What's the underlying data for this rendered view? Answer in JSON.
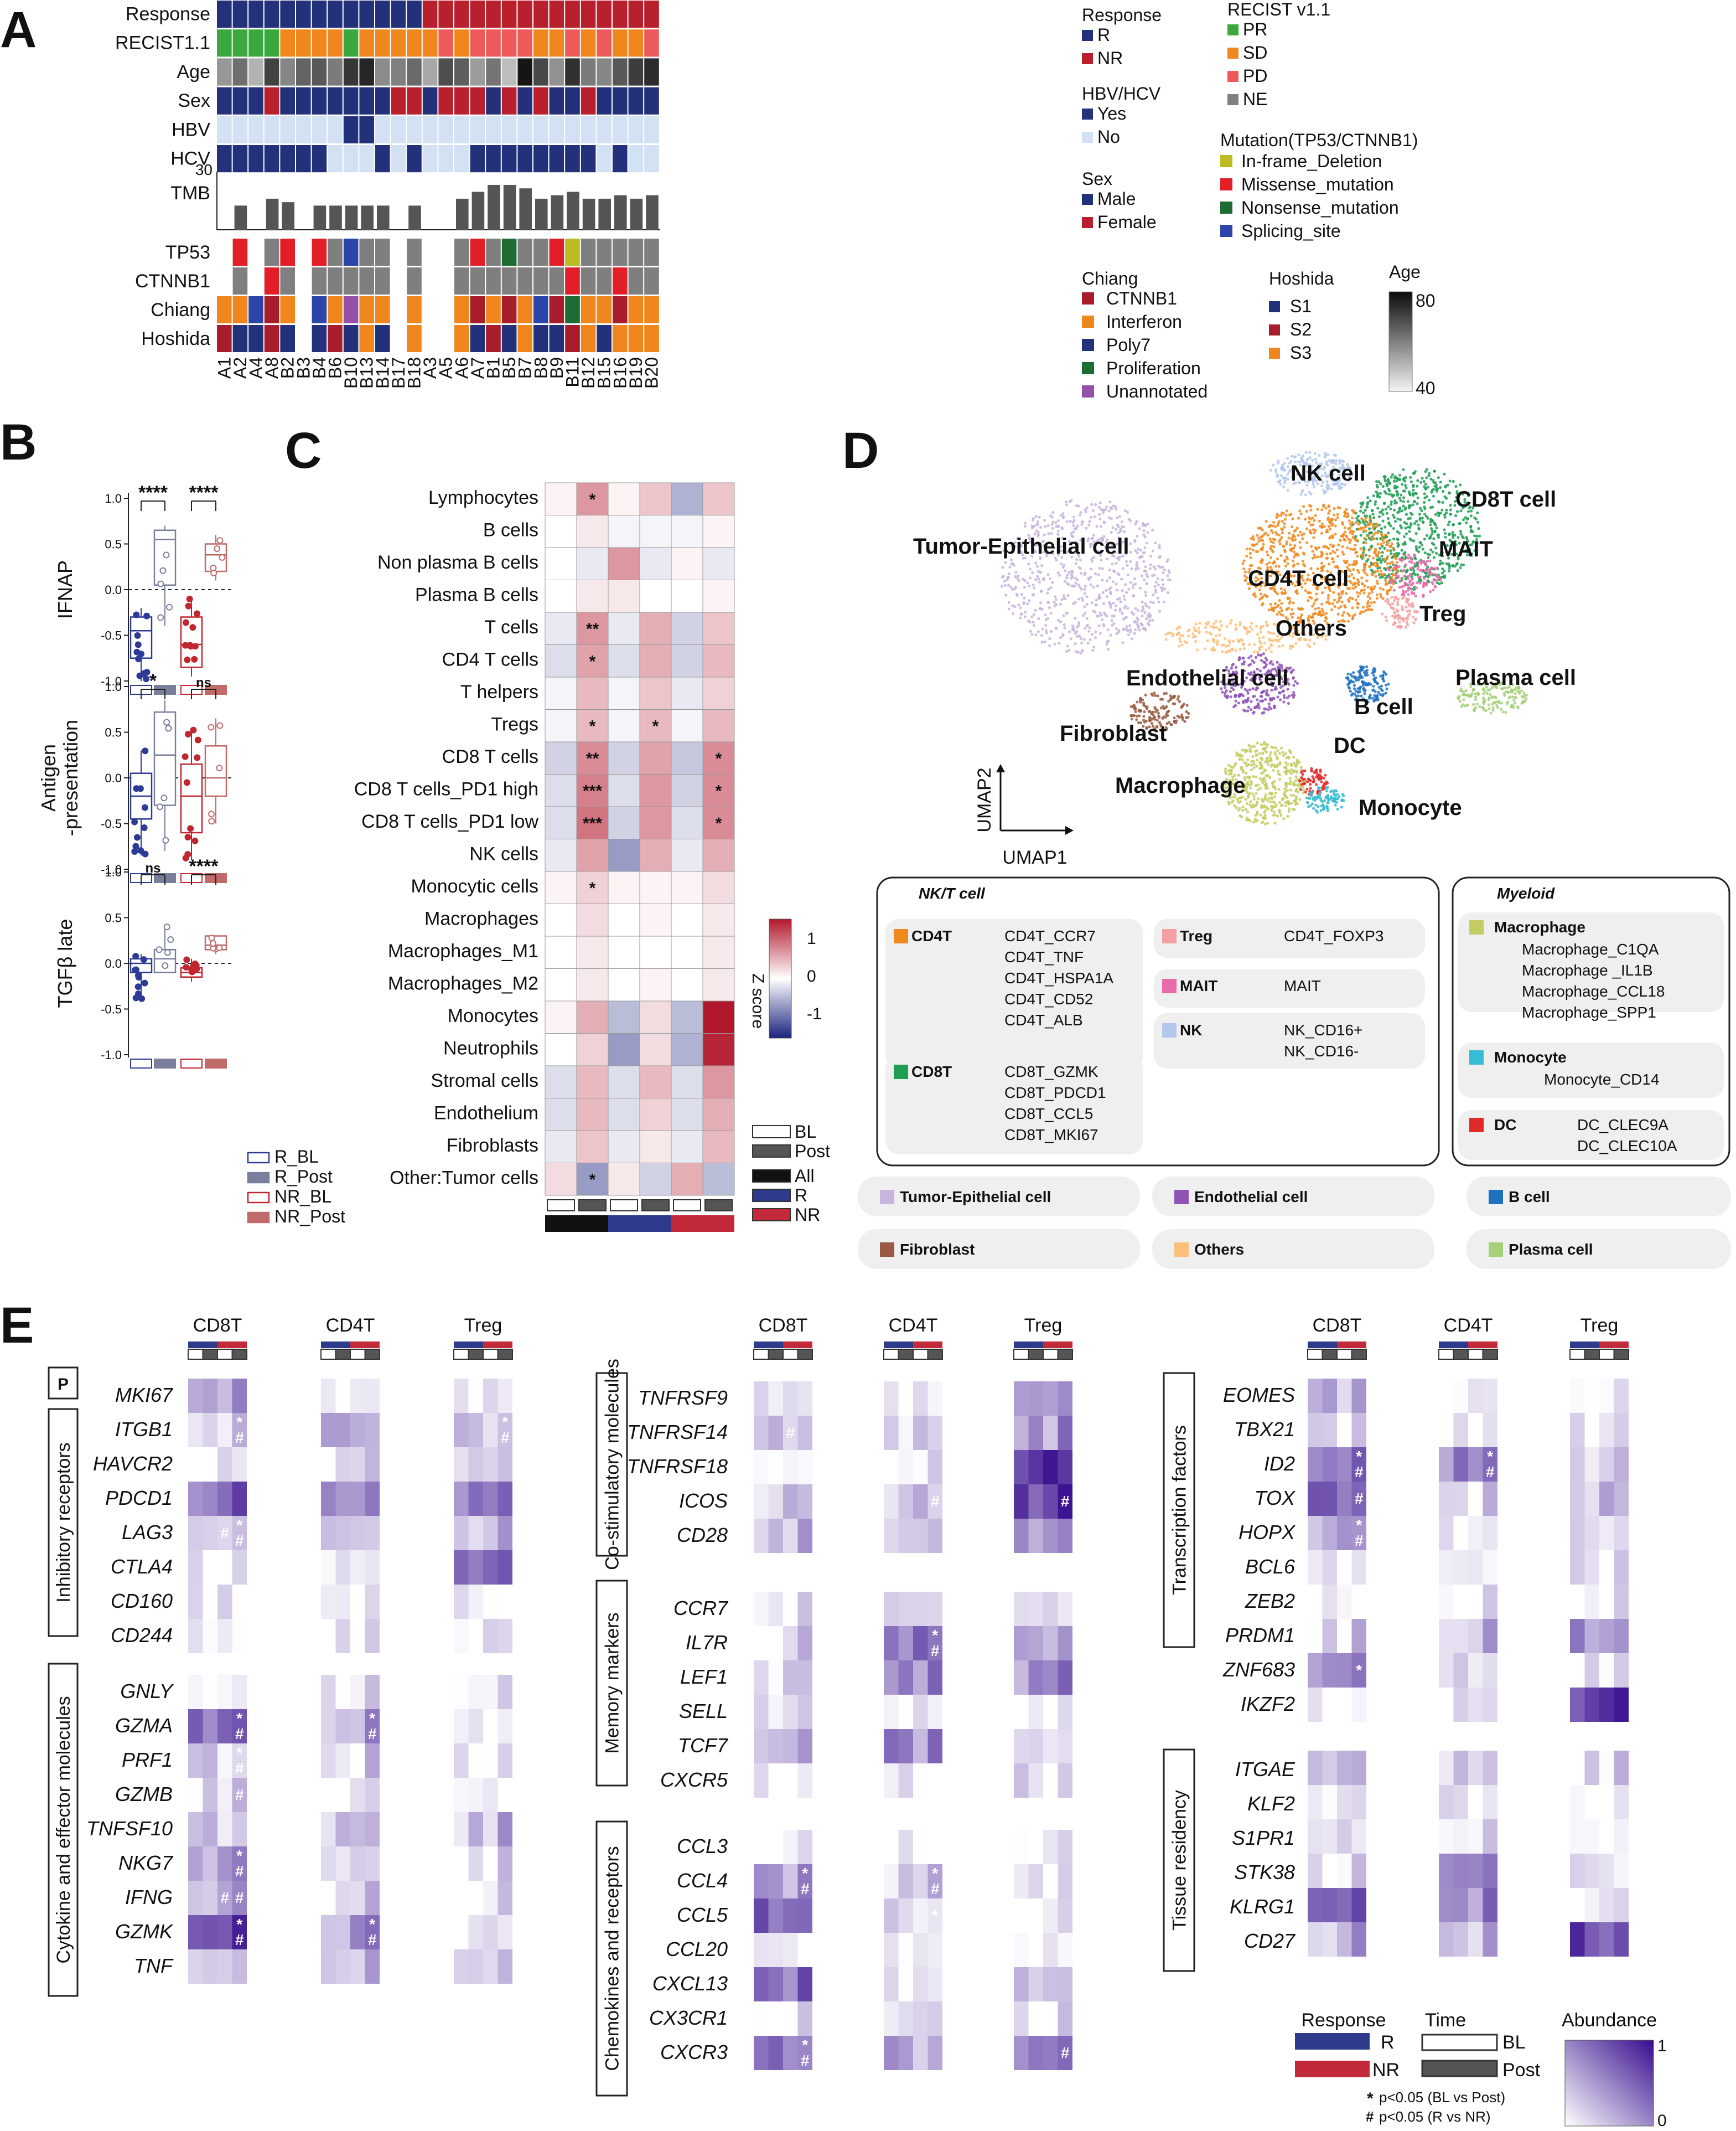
{
  "panels": {
    "a": "A",
    "b": "B",
    "c": "C",
    "d": "D",
    "e": "E"
  },
  "colors": {
    "navy": "#23307a",
    "red": "#b8202e",
    "green": "#3aa83d",
    "orange": "#f0861e",
    "pink": "#ee5a5a",
    "gray": "#7f7f7f",
    "lightblue": "#d2e1f3",
    "olive": "#bcbc22",
    "brightred": "#e21f26",
    "darkgreen": "#1e6b33",
    "blue": "#2b46a8",
    "darkred": "#a81d2b",
    "purple": "#9451a8",
    "blueRow": "#2e3a8c",
    "redRow": "#c22a3a"
  },
  "a": {
    "samples": [
      "A1",
      "A2",
      "A4",
      "A8",
      "B2",
      "B3",
      "B4",
      "B6",
      "B10",
      "B13",
      "B14",
      "B17",
      "B18",
      "A3",
      "A5",
      "A6",
      "A7",
      "B1",
      "B5",
      "B7",
      "B8",
      "B9",
      "B11",
      "B12",
      "B15",
      "B16",
      "B19",
      "B20"
    ],
    "rows": [
      "Response",
      "RECIST1.1",
      "Age",
      "Sex",
      "HBV",
      "HCV"
    ],
    "tmb_label": "TMB",
    "tmb_max": "30",
    "tmb": [
      0,
      7,
      0,
      9,
      8,
      0,
      7,
      7,
      7,
      7,
      7,
      0,
      7,
      0,
      0,
      9,
      11,
      13,
      13,
      12,
      9,
      10,
      11,
      9,
      9,
      10,
      9,
      10
    ],
    "mut_rows": [
      "TP53",
      "CTNNB1",
      "Chiang",
      "Hoshida"
    ],
    "matrix": {
      "Response": [
        "R",
        "R",
        "R",
        "R",
        "R",
        "R",
        "R",
        "R",
        "R",
        "R",
        "R",
        "R",
        "R",
        "NR",
        "NR",
        "NR",
        "NR",
        "NR",
        "NR",
        "NR",
        "NR",
        "NR",
        "NR",
        "NR",
        "NR",
        "NR",
        "NR",
        "NR"
      ],
      "RECIST1.1": [
        "PR",
        "PR",
        "PR",
        "PR",
        "SD",
        "SD",
        "SD",
        "SD",
        "PR",
        "SD",
        "SD",
        "SD",
        "SD",
        "SD",
        "PD",
        "SD",
        "PD",
        "PD",
        "PD",
        "PD",
        "SD",
        "SD",
        "PD",
        "SD",
        "PD",
        "SD",
        "SD",
        "PD"
      ],
      "Age": [
        55,
        62,
        50,
        70,
        58,
        64,
        66,
        60,
        72,
        75,
        57,
        59,
        63,
        52,
        68,
        65,
        54,
        61,
        48,
        78,
        69,
        56,
        73,
        60,
        58,
        66,
        71,
        74
      ],
      "Sex": [
        "M",
        "M",
        "M",
        "F",
        "M",
        "M",
        "M",
        "M",
        "M",
        "M",
        "M",
        "F",
        "F",
        "M",
        "F",
        "F",
        "F",
        "M",
        "F",
        "M",
        "F",
        "M",
        "M",
        "F",
        "M",
        "M",
        "M",
        "M"
      ],
      "HBV": [
        "N",
        "N",
        "N",
        "N",
        "N",
        "N",
        "N",
        "N",
        "Y",
        "Y",
        "N",
        "N",
        "N",
        "N",
        "N",
        "N",
        "N",
        "N",
        "N",
        "N",
        "N",
        "N",
        "N",
        "N",
        "N",
        "N",
        "N",
        "N"
      ],
      "HCV": [
        "Y",
        "Y",
        "Y",
        "Y",
        "Y",
        "Y",
        "Y",
        "N",
        "N",
        "N",
        "Y",
        "N",
        "Y",
        "N",
        "N",
        "N",
        "Y",
        "Y",
        "Y",
        "Y",
        "Y",
        "Y",
        "Y",
        "Y",
        "N",
        "Y",
        "N",
        "N"
      ],
      "TP53": [
        "",
        "brightred",
        "",
        "gray",
        "brightred",
        "",
        "brightred",
        "gray",
        "blue",
        "gray",
        "gray",
        "",
        "gray",
        "",
        "",
        "gray",
        "brightred",
        "gray",
        "darkgreen",
        "gray",
        "gray",
        "brightred",
        "olive",
        "gray",
        "gray",
        "gray",
        "gray",
        "gray"
      ],
      "CTNNB1": [
        "",
        "gray",
        "",
        "brightred",
        "gray",
        "",
        "gray",
        "gray",
        "gray",
        "gray",
        "gray",
        "",
        "gray",
        "",
        "",
        "gray",
        "gray",
        "gray",
        "gray",
        "gray",
        "gray",
        "gray",
        "brightred",
        "gray",
        "gray",
        "brightred",
        "gray",
        "gray"
      ],
      "Chiang": [
        "orange",
        "orange",
        "blue",
        "darkred",
        "orange",
        "",
        "blue",
        "orange",
        "purple",
        "orange",
        "orange",
        "",
        "orange",
        "",
        "",
        "orange",
        "darkred",
        "orange",
        "darkred",
        "orange",
        "blue",
        "darkred",
        "darkgreen",
        "orange",
        "orange",
        "darkred",
        "orange",
        "orange"
      ],
      "Hoshida": [
        "darkred",
        "navy",
        "navy",
        "darkred",
        "navy",
        "",
        "navy",
        "darkred",
        "navy",
        "orange",
        "navy",
        "",
        "orange",
        "",
        "",
        "orange",
        "navy",
        "darkred",
        "navy",
        "orange",
        "navy",
        "navy",
        "darkred",
        "orange",
        "navy",
        "orange",
        "orange",
        "orange"
      ]
    },
    "legend": {
      "response": {
        "title": "Response",
        "items": [
          "R",
          "NR"
        ]
      },
      "hbv": {
        "title": "HBV/HCV",
        "items": [
          "Yes",
          "No"
        ]
      },
      "sex": {
        "title": "Sex",
        "items": [
          "Male",
          "Female"
        ]
      },
      "chiang": {
        "title": "Chiang",
        "items": [
          "CTNNB1",
          "Interferon",
          "Poly7",
          "Proliferation",
          "Unannotated"
        ]
      },
      "recist": {
        "title": "RECIST v1.1",
        "items": [
          "PR",
          "SD",
          "PD",
          "NE"
        ]
      },
      "mutation": {
        "title": "Mutation(TP53/CTNNB1)",
        "items": [
          "In-frame_Deletion",
          "Missense_mutation",
          "Nonsense_mutation",
          "Splicing_site"
        ]
      },
      "hoshida": {
        "title": "Hoshida",
        "items": [
          "S1",
          "S2",
          "S3"
        ]
      },
      "age": {
        "title": "Age",
        "max": "80",
        "min": "40"
      }
    }
  },
  "b": {
    "plots": [
      {
        "ylabel": "IFNAP",
        "sig": [
          "****",
          "****"
        ],
        "ticks": [
          "1.0",
          "0.5",
          "0.0",
          "-0.5",
          "-1.0"
        ]
      },
      {
        "ylabel": "Antigen",
        "ylabel2": "-presentation",
        "sig": [
          "*",
          "ns"
        ],
        "ticks": [
          "1.0",
          "0.5",
          "0.0",
          "-0.5",
          "-1.0"
        ]
      },
      {
        "ylabel": "TGFβ late",
        "sig": [
          "ns",
          "****"
        ],
        "ticks": [
          "1.0",
          "0.5",
          "0.0",
          "-0.5",
          "-1.0"
        ]
      }
    ],
    "legend": [
      "R_BL",
      "R_Post",
      "NR_BL",
      "NR_Post"
    ]
  },
  "c": {
    "rows": [
      "Lymphocytes",
      "B cells",
      "Non plasma B cells",
      "Plasma B cells",
      "T cells",
      "CD4 T cells",
      "T helpers",
      "Tregs",
      "CD8 T cells",
      "CD8 T cells_PD1 high",
      "CD8 T cells_PD1 low",
      "NK cells",
      "Monocytic cells",
      "Macrophages",
      "Macrophages_M1",
      "Macrophages_M2",
      "Monocytes",
      "Neutrophils",
      "Stromal cells",
      "Endothelium",
      "Fibroblasts",
      "Other:Tumor cells"
    ],
    "z": [
      [
        0.05,
        0.45,
        0.05,
        0.25,
        -0.35,
        0.25
      ],
      [
        0,
        0.1,
        -0.05,
        -0.05,
        -0.05,
        0.05
      ],
      [
        0,
        -0.1,
        0.45,
        -0.1,
        0.05,
        -0.1
      ],
      [
        0,
        0.1,
        0.1,
        0,
        0,
        0.05
      ],
      [
        -0.1,
        0.45,
        -0.1,
        0.35,
        -0.2,
        0.25
      ],
      [
        -0.15,
        0.4,
        -0.15,
        0.35,
        -0.2,
        0.3
      ],
      [
        -0.05,
        0.3,
        -0.05,
        0.25,
        -0.1,
        0.2
      ],
      [
        -0.05,
        0.3,
        -0.05,
        0.3,
        -0.05,
        0.3
      ],
      [
        -0.2,
        0.5,
        -0.2,
        0.4,
        -0.25,
        0.5
      ],
      [
        -0.15,
        0.55,
        -0.15,
        0.45,
        -0.2,
        0.5
      ],
      [
        -0.15,
        0.6,
        -0.2,
        0.45,
        -0.15,
        0.5
      ],
      [
        -0.1,
        0.4,
        -0.45,
        0.35,
        -0.1,
        0.35
      ],
      [
        0.05,
        0.2,
        0.05,
        0.05,
        0.05,
        0.15
      ],
      [
        0,
        0.15,
        0,
        0.05,
        0,
        0.1
      ],
      [
        0,
        0.1,
        0,
        0,
        0,
        0.1
      ],
      [
        0,
        0.1,
        0,
        0.05,
        0,
        0.1
      ],
      [
        0.05,
        0.35,
        -0.3,
        0.15,
        -0.3,
        1.0
      ],
      [
        0,
        0.2,
        -0.45,
        0.15,
        -0.35,
        0.95
      ],
      [
        -0.15,
        0.3,
        -0.15,
        0.3,
        -0.15,
        0.45
      ],
      [
        -0.15,
        0.3,
        -0.15,
        0.2,
        -0.15,
        0.35
      ],
      [
        -0.1,
        0.25,
        -0.1,
        0.1,
        -0.1,
        0.3
      ],
      [
        0.15,
        -0.45,
        0.1,
        -0.2,
        0.35,
        -0.3
      ]
    ],
    "stars": [
      [
        "",
        "*",
        "",
        "",
        "",
        ""
      ],
      [
        "",
        "",
        "",
        "",
        "",
        ""
      ],
      [
        "",
        "",
        "",
        "",
        "",
        ""
      ],
      [
        "",
        "",
        "",
        "",
        "",
        ""
      ],
      [
        "",
        "**",
        "",
        "",
        "",
        ""
      ],
      [
        "",
        "*",
        "",
        "",
        "",
        ""
      ],
      [
        "",
        "",
        "",
        "",
        "",
        ""
      ],
      [
        "",
        "*",
        "",
        "*",
        "",
        ""
      ],
      [
        "",
        "**",
        "",
        "",
        "",
        "*"
      ],
      [
        "",
        "***",
        "",
        "",
        "",
        "*"
      ],
      [
        "",
        "***",
        "",
        "",
        "",
        "*"
      ],
      [
        "",
        "",
        "",
        "",
        "",
        ""
      ],
      [
        "",
        "*",
        "",
        "",
        "",
        ""
      ],
      [
        "",
        "",
        "",
        "",
        "",
        ""
      ],
      [
        "",
        "",
        "",
        "",
        "",
        ""
      ],
      [
        "",
        "",
        "",
        "",
        "",
        ""
      ],
      [
        "",
        "",
        "",
        "",
        "",
        ""
      ],
      [
        "",
        "",
        "",
        "",
        "",
        ""
      ],
      [
        "",
        "",
        "",
        "",
        "",
        ""
      ],
      [
        "",
        "",
        "",
        "",
        "",
        ""
      ],
      [
        "",
        "",
        "",
        "",
        "",
        ""
      ],
      [
        "",
        "*",
        "",
        "",
        "",
        ""
      ]
    ],
    "scale": {
      "title": "Z score",
      "ticks": [
        "1",
        "0",
        "-1"
      ]
    },
    "legend": [
      "BL",
      "Post",
      "All",
      "R",
      "NR"
    ]
  },
  "d": {
    "clusters": [
      "NK cell",
      "CD8T cell",
      "Tumor-Epithelial cell",
      "MAIT",
      "CD4T cell",
      "Treg",
      "Others",
      "Endothelial cell",
      "Plasma cell",
      "B cell",
      "Fibroblast",
      "DC",
      "Macrophage",
      "Monocyte"
    ],
    "axes": [
      "UMAP1",
      "UMAP2"
    ],
    "nkt": {
      "title": "NK/T cell",
      "cd4t": {
        "name": "CD4T",
        "items": [
          "CD4T_CCR7",
          "CD4T_TNF",
          "CD4T_HSPA1A",
          "CD4T_CD52",
          "CD4T_ALB"
        ]
      },
      "cd8t": {
        "name": "CD8T",
        "items": [
          "CD8T_GZMK",
          "CD8T_PDCD1",
          "CD8T_CCL5",
          "CD8T_MKI67"
        ]
      },
      "treg": {
        "name": "Treg",
        "items": [
          "CD4T_FOXP3"
        ]
      },
      "mait": {
        "name": "MAIT",
        "items": [
          "MAIT"
        ]
      },
      "nk": {
        "name": "NK",
        "items": [
          "NK_CD16+",
          "NK_CD16-"
        ]
      }
    },
    "myeloid": {
      "title": "Myeloid",
      "mac": {
        "name": "Macrophage",
        "items": [
          "Macrophage_C1QA",
          "Macrophage _IL1B",
          "Macrophage_CCL18",
          "Macrophage_SPP1"
        ]
      },
      "mono": {
        "name": "Monocyte",
        "items": [
          "Monocyte_CD14"
        ]
      },
      "dc": {
        "name": "DC",
        "items": [
          "DC_CLEC9A",
          "DC_CLEC10A"
        ]
      }
    },
    "others": [
      "Tumor-Epithelial cell",
      "Endothelial cell",
      "B cell",
      "Fibroblast",
      "Others",
      "Plasma cell"
    ]
  },
  "e": {
    "groups": [
      "CD8T",
      "CD4T",
      "Treg"
    ],
    "categories": {
      "p": "P",
      "inhib": "Inhibitory receptors",
      "cyto": "Cytokine and effector molecules",
      "costim": "Co-stimulatory molecules",
      "memory": "Memory markers",
      "chemo": "Chemokines and receptors",
      "tf": "Transcription factors",
      "tissue": "Tissue residency"
    },
    "col1": {
      "p": [
        "MKI67"
      ],
      "inhib": [
        "ITGB1",
        "HAVCR2",
        "PDCD1",
        "LAG3",
        "CTLA4",
        "CD160",
        "CD244"
      ],
      "cyto": [
        "GNLY",
        "GZMA",
        "PRF1",
        "GZMB",
        "TNFSF10",
        "NKG7",
        "IFNG",
        "GZMK",
        "TNF"
      ]
    },
    "col2": {
      "costim": [
        "TNFRSF9",
        "TNFRSF14",
        "TNFRSF18",
        "ICOS",
        "CD28"
      ],
      "memory": [
        "CCR7",
        "IL7R",
        "LEF1",
        "SELL",
        "TCF7",
        "CXCR5"
      ],
      "chemo": [
        "CCL3",
        "CCL4",
        "CCL5",
        "CCL20",
        "CXCL13",
        "CX3CR1",
        "CXCR3"
      ]
    },
    "col3": {
      "tf": [
        "EOMES",
        "TBX21",
        "ID2",
        "TOX",
        "HOPX",
        "BCL6",
        "ZEB2",
        "PRDM1",
        "ZNF683",
        "IKZF2"
      ],
      "tissue": [
        "ITGAE",
        "KLF2",
        "S1PR1",
        "STK38",
        "KLRG1",
        "CD27"
      ]
    },
    "legend": {
      "response": "Response",
      "r": "R",
      "nr": "NR",
      "time": "Time",
      "bl": "BL",
      "post": "Post",
      "abundance": "Abundance",
      "max": "1",
      "min": "0",
      "star": "p<0.05 (BL vs Post)",
      "hash": "p<0.05 (R vs NR)"
    }
  }
}
